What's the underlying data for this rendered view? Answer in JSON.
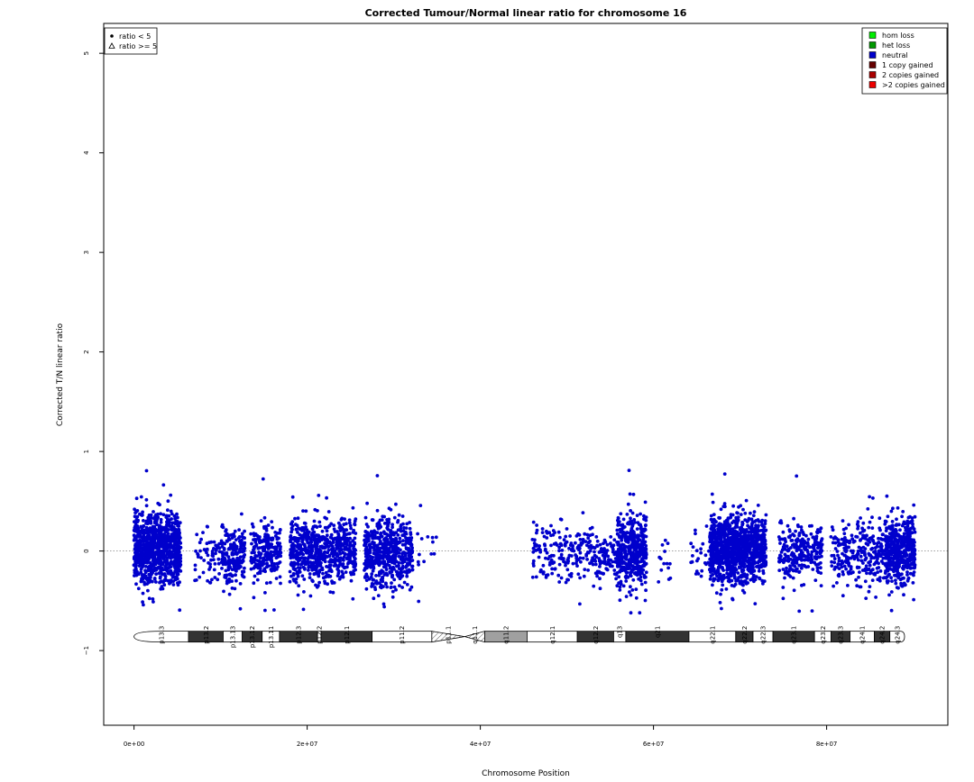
{
  "chart_data": {
    "type": "scatter",
    "title": "Corrected Tumour/Normal linear ratio for chromosome  16",
    "xlabel": "Chromosome Position",
    "ylabel": "Corrected T/N linear ratio",
    "xlim": [
      -3500000,
      94000000
    ],
    "ylim": [
      -1.75,
      5.3
    ],
    "x_ticks": [
      0,
      20000000,
      40000000,
      60000000,
      80000000
    ],
    "x_tick_labels": [
      "0e+00",
      "2e+07",
      "4e+07",
      "6e+07",
      "8e+07"
    ],
    "y_ticks": [
      -1,
      0,
      1,
      2,
      3,
      4,
      5
    ],
    "y_tick_labels": [
      "−1",
      "0",
      "1",
      "2",
      "3",
      "4",
      "5"
    ],
    "reference_line": 0,
    "grid": false,
    "series": [
      {
        "name": "neutral",
        "color": "#0000cc",
        "marker": "circle",
        "segments": [
          {
            "start": 0,
            "end": 5400000,
            "n": 950,
            "mean": 0.03,
            "sd": 0.17
          },
          {
            "start": 7000000,
            "end": 10000000,
            "n": 60,
            "mean": -0.05,
            "sd": 0.13
          },
          {
            "start": 10100000,
            "end": 12800000,
            "n": 200,
            "mean": -0.04,
            "sd": 0.15
          },
          {
            "start": 13500000,
            "end": 17000000,
            "n": 230,
            "mean": 0.0,
            "sd": 0.14
          },
          {
            "start": 18000000,
            "end": 25600000,
            "n": 650,
            "mean": 0.0,
            "sd": 0.15
          },
          {
            "start": 26600000,
            "end": 32200000,
            "n": 560,
            "mean": -0.02,
            "sd": 0.17
          },
          {
            "start": 32400000,
            "end": 35000000,
            "n": 14,
            "mean": 0.03,
            "sd": 0.15
          },
          {
            "start": 46000000,
            "end": 52800000,
            "n": 180,
            "mean": 0.0,
            "sd": 0.14
          },
          {
            "start": 52800000,
            "end": 55800000,
            "n": 100,
            "mean": -0.06,
            "sd": 0.12
          },
          {
            "start": 55800000,
            "end": 59200000,
            "n": 450,
            "mean": 0.0,
            "sd": 0.17
          },
          {
            "start": 60500000,
            "end": 62000000,
            "n": 14,
            "mean": -0.1,
            "sd": 0.13
          },
          {
            "start": 64300000,
            "end": 66500000,
            "n": 25,
            "mean": -0.05,
            "sd": 0.14
          },
          {
            "start": 66500000,
            "end": 73000000,
            "n": 1100,
            "mean": 0.02,
            "sd": 0.16
          },
          {
            "start": 74500000,
            "end": 79500000,
            "n": 260,
            "mean": 0.0,
            "sd": 0.15
          },
          {
            "start": 80500000,
            "end": 83500000,
            "n": 110,
            "mean": -0.03,
            "sd": 0.14
          },
          {
            "start": 83500000,
            "end": 86800000,
            "n": 160,
            "mean": -0.02,
            "sd": 0.16
          },
          {
            "start": 86800000,
            "end": 90200000,
            "n": 450,
            "mean": 0.0,
            "sd": 0.16
          }
        ]
      }
    ],
    "point_legend": {
      "position": "top-left",
      "items": [
        {
          "symbol": "circle",
          "label": "ratio < 5"
        },
        {
          "symbol": "triangle",
          "label": "ratio >= 5"
        }
      ]
    },
    "state_legend": {
      "position": "top-right",
      "items": [
        {
          "label": "hom loss",
          "color": "#00ee00"
        },
        {
          "label": "het loss",
          "color": "#009900"
        },
        {
          "label": "neutral",
          "color": "#0000cc"
        },
        {
          "label": "1 copy gained",
          "color": "#660000"
        },
        {
          "label": "2 copies gained",
          "color": "#aa0000"
        },
        {
          "label": ">2 copies gained",
          "color": "#ee0000"
        }
      ]
    },
    "ideogram": {
      "y_center": -0.86,
      "bands": [
        {
          "name": "p13.3",
          "start": 0,
          "end": 6300000,
          "stain": "gneg"
        },
        {
          "name": "p13.2",
          "start": 6300000,
          "end": 10300000,
          "stain": "gpos50"
        },
        {
          "name": "p13.13",
          "start": 10300000,
          "end": 12500000,
          "stain": "gneg"
        },
        {
          "name": "p13.12",
          "start": 12500000,
          "end": 14800000,
          "stain": "gpos50"
        },
        {
          "name": "p13.11",
          "start": 14800000,
          "end": 16800000,
          "stain": "gneg"
        },
        {
          "name": "p12.3",
          "start": 16800000,
          "end": 21200000,
          "stain": "gpos50"
        },
        {
          "name": "p12.2",
          "start": 21200000,
          "end": 21600000,
          "stain": "gneg"
        },
        {
          "name": "p12.1",
          "start": 21600000,
          "end": 27500000,
          "stain": "gpos50"
        },
        {
          "name": "p11.2",
          "start": 27500000,
          "end": 34400000,
          "stain": "gneg"
        },
        {
          "name": "p11.1",
          "start": 34400000,
          "end": 38200000,
          "stain": "acen"
        },
        {
          "name": "q11.1",
          "start": 38200000,
          "end": 40500000,
          "stain": "acen"
        },
        {
          "name": "q11.2",
          "start": 40500000,
          "end": 45400000,
          "stain": "gvar"
        },
        {
          "name": "q12.1",
          "start": 45400000,
          "end": 51200000,
          "stain": "gneg"
        },
        {
          "name": "q12.2",
          "start": 51200000,
          "end": 55400000,
          "stain": "gpos50"
        },
        {
          "name": "q13",
          "start": 55400000,
          "end": 56800000,
          "stain": "gneg"
        },
        {
          "name": "q21",
          "start": 56800000,
          "end": 64100000,
          "stain": "gpos50"
        },
        {
          "name": "q22.1",
          "start": 64100000,
          "end": 69500000,
          "stain": "gneg"
        },
        {
          "name": "q22.2",
          "start": 69500000,
          "end": 71500000,
          "stain": "gpos50"
        },
        {
          "name": "q22.3",
          "start": 71500000,
          "end": 73800000,
          "stain": "gneg"
        },
        {
          "name": "q23.1",
          "start": 73800000,
          "end": 78600000,
          "stain": "gpos50"
        },
        {
          "name": "q23.2",
          "start": 78600000,
          "end": 80500000,
          "stain": "gneg"
        },
        {
          "name": "q23.3",
          "start": 80500000,
          "end": 82700000,
          "stain": "gpos50"
        },
        {
          "name": "q24.1",
          "start": 82700000,
          "end": 85500000,
          "stain": "gneg"
        },
        {
          "name": "q24.2",
          "start": 85500000,
          "end": 87300000,
          "stain": "gpos50"
        },
        {
          "name": "q24.3",
          "start": 87300000,
          "end": 89000000,
          "stain": "gneg"
        }
      ]
    }
  }
}
